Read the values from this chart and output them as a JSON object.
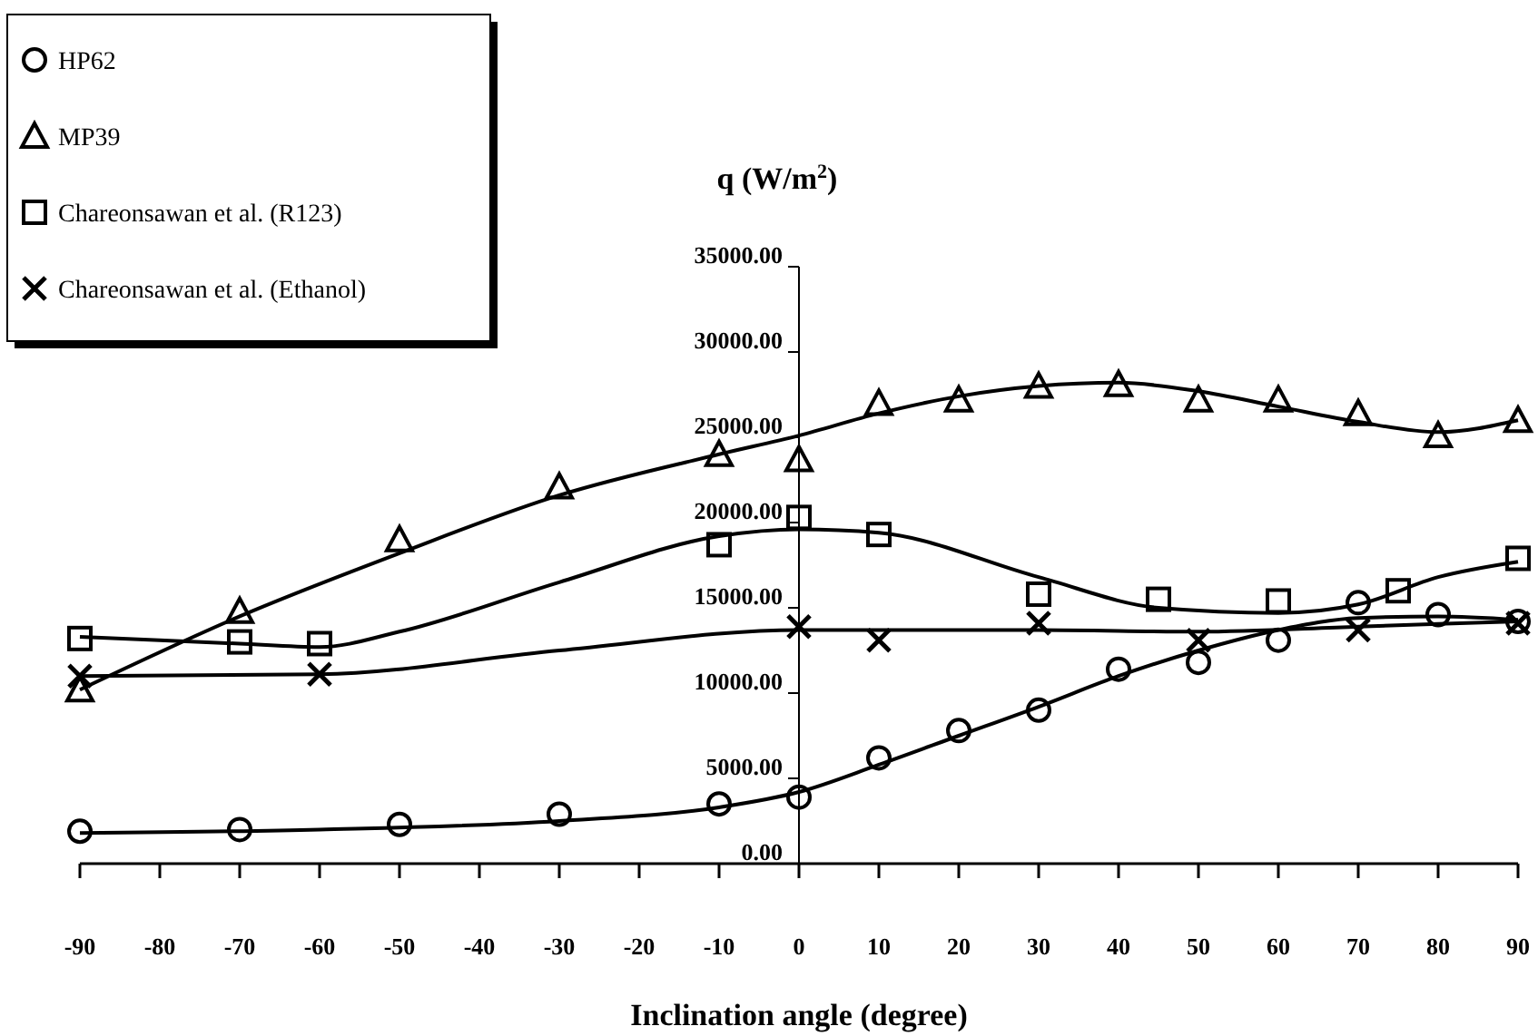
{
  "chart_data": {
    "type": "scatter",
    "xlabel": "Inclination angle (degree)",
    "ylabel": "q (W/m$^{2}$)",
    "xlim": [
      -90,
      90
    ],
    "xticks": [
      -90,
      -80,
      -70,
      -60,
      -50,
      -40,
      -30,
      -20,
      -10,
      0,
      10,
      20,
      30,
      40,
      50,
      60,
      70,
      80,
      90
    ],
    "ylim": [
      0,
      35000
    ],
    "yticks": [
      {
        "value": 0,
        "label": "0.00"
      },
      {
        "value": 5000,
        "label": "5000.00"
      },
      {
        "value": 10000,
        "label": "10000.00"
      },
      {
        "value": 15000,
        "label": "15000.00"
      },
      {
        "value": 20000,
        "label": "20000.00"
      },
      {
        "value": 25000,
        "label": "25000.00"
      },
      {
        "value": 30000,
        "label": "30000.00"
      },
      {
        "value": 35000,
        "label": "35000.00"
      }
    ],
    "grid": false,
    "legend": "top left",
    "series": [
      {
        "name": "HP62",
        "color": "#000000",
        "marker": "circle",
        "x": [
          -90,
          -70,
          -50,
          -30,
          -10,
          0,
          10,
          20,
          30,
          40,
          50,
          60,
          70,
          80,
          90
        ],
        "values": [
          1900,
          2000,
          2300,
          2900,
          3500,
          3900,
          6200,
          7800,
          9000,
          11400,
          11800,
          13100,
          15300,
          14600,
          14200
        ]
      },
      {
        "name": "MP39",
        "color": "#000000",
        "marker": "triangle",
        "x": [
          -90,
          -70,
          -50,
          -30,
          -10,
          0,
          10,
          20,
          30,
          40,
          50,
          60,
          70,
          80,
          90
        ],
        "values": [
          10200,
          14800,
          19000,
          22100,
          24000,
          23700,
          27000,
          27200,
          28000,
          28100,
          27200,
          27200,
          26400,
          25100,
          26000
        ]
      },
      {
        "name": "Chareonsawan et al. (R123)",
        "color": "#000000",
        "marker": "square",
        "x": [
          -90,
          -70,
          -60,
          -10,
          0,
          10,
          30,
          45,
          60,
          75,
          90
        ],
        "values": [
          13200,
          13000,
          12900,
          18700,
          20300,
          19300,
          15800,
          15500,
          15400,
          16000,
          17900
        ]
      },
      {
        "name": "Chareonsawan et al. (Ethanol)",
        "color": "#000000",
        "marker": "cross",
        "x": [
          -90,
          -60,
          0,
          10,
          30,
          50,
          70,
          90
        ],
        "values": [
          11000,
          11100,
          13900,
          13100,
          14100,
          13100,
          13700,
          14100
        ]
      },
      {
        "type": "line",
        "color": "#000000",
        "marker": "none",
        "line_style": "solid",
        "x": [
          -90,
          -60,
          -30,
          -10,
          0,
          10,
          20,
          30,
          40,
          50,
          60,
          70,
          80,
          90
        ],
        "values": [
          1800,
          2000,
          2500,
          3300,
          4200,
          5800,
          7500,
          9200,
          11000,
          12500,
          13700,
          14400,
          14500,
          14300
        ]
      },
      {
        "type": "line",
        "color": "#000000",
        "marker": "none",
        "line_style": "solid",
        "x": [
          -90,
          -70,
          -50,
          -30,
          -10,
          0,
          10,
          20,
          30,
          40,
          50,
          60,
          70,
          80,
          90
        ],
        "values": [
          10200,
          14500,
          18200,
          21600,
          24000,
          25100,
          26400,
          27400,
          28000,
          28200,
          27700,
          26800,
          25900,
          25300,
          26000
        ]
      },
      {
        "type": "line",
        "color": "#000000",
        "marker": "none",
        "line_style": "solid",
        "x": [
          -90,
          -70,
          -60,
          -50,
          -30,
          -10,
          0,
          10,
          30,
          45,
          60,
          70,
          80,
          90
        ],
        "values": [
          13300,
          12900,
          12700,
          13600,
          16500,
          19200,
          19600,
          19400,
          16800,
          15000,
          14700,
          15200,
          16800,
          17700
        ]
      },
      {
        "type": "line",
        "color": "#000000",
        "marker": "none",
        "line_style": "solid",
        "x": [
          -90,
          -60,
          -30,
          0,
          30,
          50,
          70,
          90
        ],
        "values": [
          11000,
          11100,
          12500,
          13700,
          13700,
          13600,
          13900,
          14200
        ]
      }
    ]
  }
}
